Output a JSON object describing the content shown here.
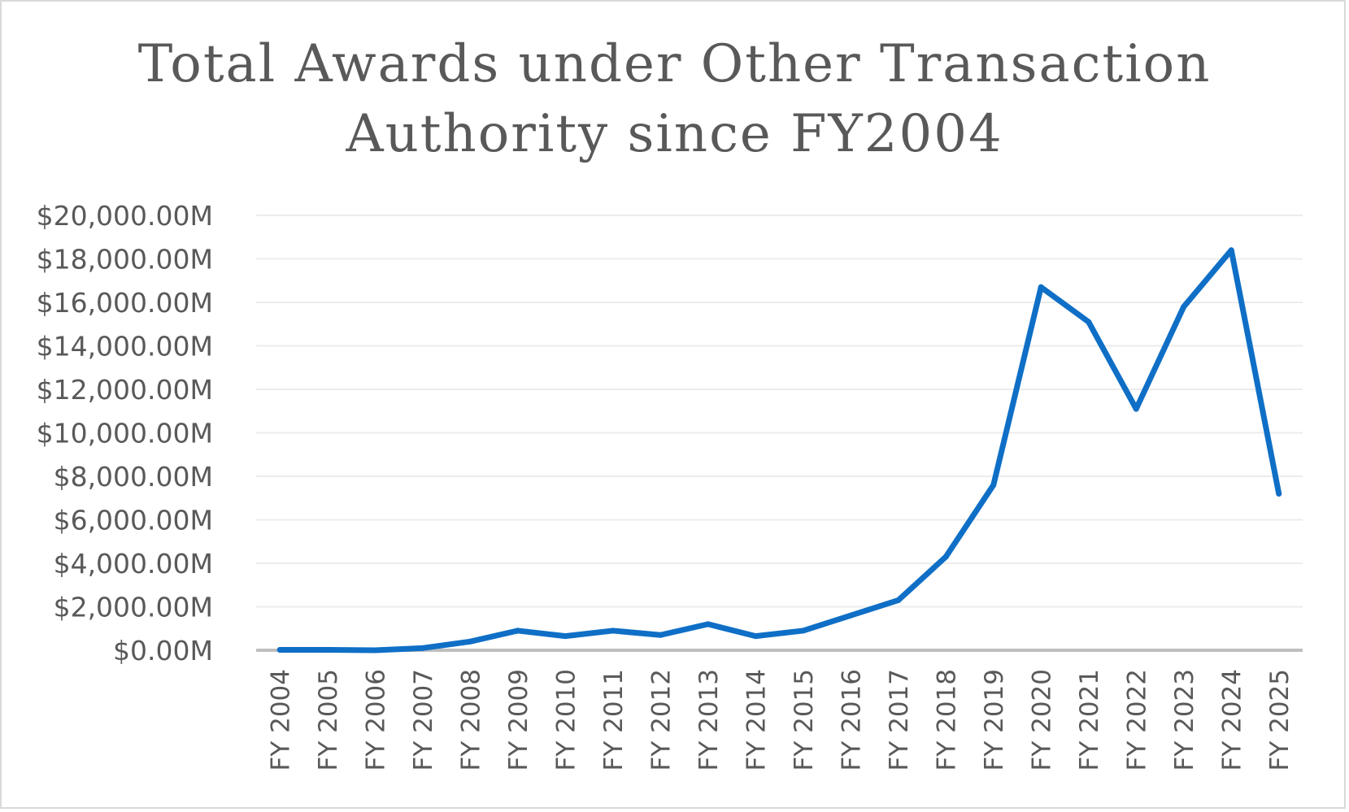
{
  "chart_data": {
    "type": "line",
    "title_lines": [
      "Total Awards under Other Transaction",
      "Authority since FY2004"
    ],
    "xlabel": "",
    "ylabel": "",
    "categories": [
      "FY 2004",
      "FY 2005",
      "FY 2006",
      "FY 2007",
      "FY 2008",
      "FY 2009",
      "FY 2010",
      "FY 2011",
      "FY 2012",
      "FY 2013",
      "FY 2014",
      "FY 2015",
      "FY 2016",
      "FY 2017",
      "FY 2018",
      "FY 2019",
      "FY 2020",
      "FY 2021",
      "FY 2022",
      "FY 2023",
      "FY 2024",
      "FY 2025"
    ],
    "series": [
      {
        "color": "#0f6fc6",
        "values": [
          20,
          20,
          0,
          100,
          400,
          900,
          650,
          900,
          700,
          1200,
          650,
          900,
          1600,
          2300,
          4300,
          7600,
          16700,
          15100,
          11100,
          15800,
          18400,
          7200
        ]
      }
    ],
    "ylim": [
      0,
      20000
    ],
    "yticks": [
      0,
      2000,
      4000,
      6000,
      8000,
      10000,
      12000,
      14000,
      16000,
      18000,
      20000
    ],
    "ytick_labels": [
      "$0.00M",
      "$2,000.00M",
      "$4,000.00M",
      "$6,000.00M",
      "$8,000.00M",
      "$10,000.00M",
      "$12,000.00M",
      "$14,000.00M",
      "$16,000.00M",
      "$18,000.00M",
      "$20,000.00M"
    ],
    "grid": true,
    "legend": "none"
  }
}
